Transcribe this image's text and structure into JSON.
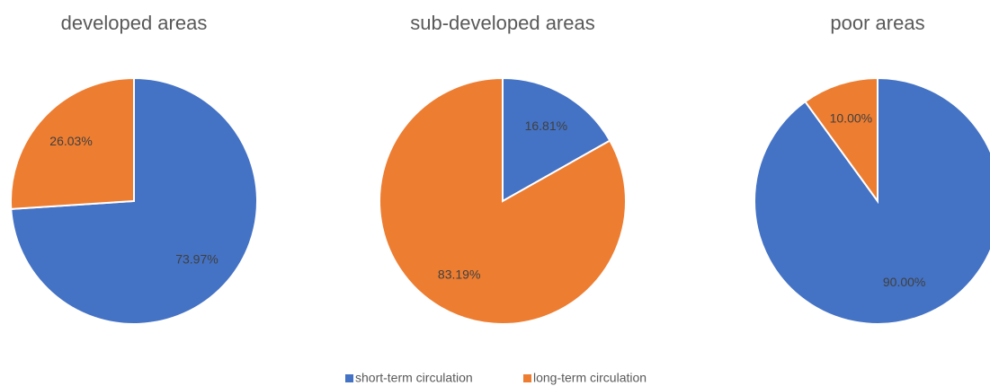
{
  "chart_data": [
    {
      "type": "pie",
      "title": "developed areas",
      "values": [
        73.97,
        26.03
      ],
      "value_labels": [
        "73.97%",
        "26.03%"
      ]
    },
    {
      "type": "pie",
      "title": "sub-developed areas",
      "values": [
        16.81,
        83.19
      ],
      "value_labels": [
        "16.81%",
        "83.19%"
      ]
    },
    {
      "type": "pie",
      "title": "poor areas",
      "values": [
        90,
        10
      ],
      "value_labels": [
        "90.00%",
        "10.00%"
      ]
    }
  ],
  "legend": {
    "labels": [
      "short-term circulation",
      "long-term circulation"
    ],
    "colors": [
      "#4472c4",
      "#ed7d31"
    ]
  }
}
